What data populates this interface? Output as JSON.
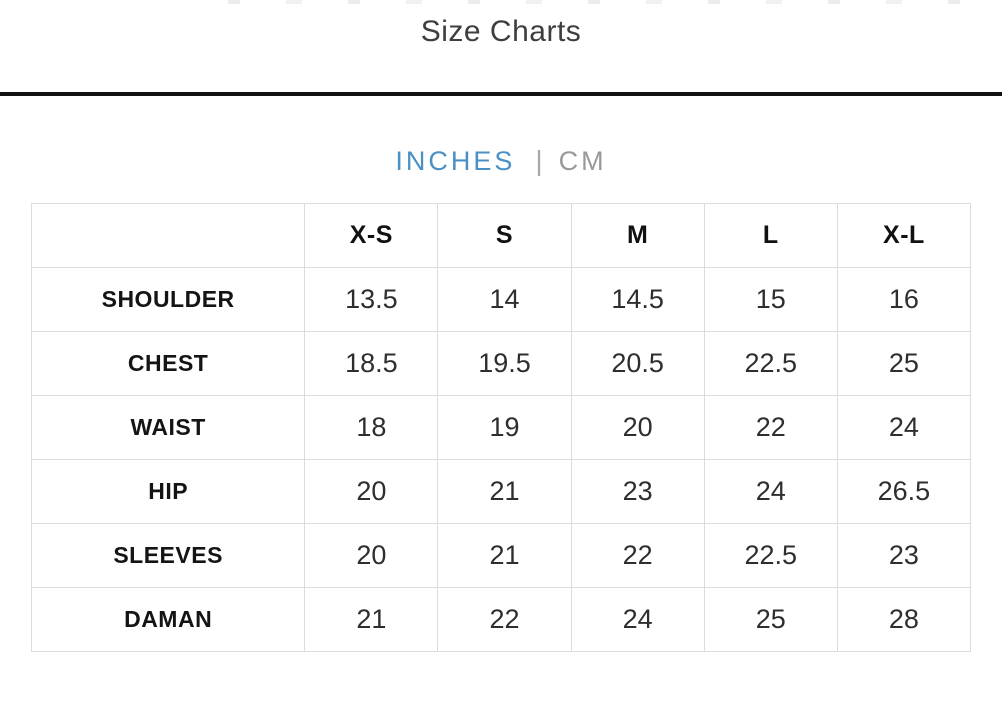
{
  "page": {
    "title": "Size Charts"
  },
  "unit_toggle": {
    "inches_label": "INCHES",
    "cm_label": "CM",
    "separator": "|",
    "active": "INCHES",
    "active_color": "#4a90c4",
    "inactive_color": "#97999b"
  },
  "table": {
    "columns": [
      "",
      "X-S",
      "S",
      "M",
      "L",
      "X-L"
    ],
    "rows": [
      {
        "label": "SHOULDER",
        "values": [
          "13.5",
          "14",
          "14.5",
          "15",
          "16"
        ]
      },
      {
        "label": "CHEST",
        "values": [
          "18.5",
          "19.5",
          "20.5",
          "22.5",
          "25"
        ]
      },
      {
        "label": "WAIST",
        "values": [
          "18",
          "19",
          "20",
          "22",
          "24"
        ]
      },
      {
        "label": "HIP",
        "values": [
          "20",
          "21",
          "23",
          "24",
          "26.5"
        ]
      },
      {
        "label": "SLEEVES",
        "values": [
          "20",
          "21",
          "22",
          "22.5",
          "23"
        ]
      },
      {
        "label": "DAMAN",
        "values": [
          "21",
          "22",
          "24",
          "25",
          "28"
        ]
      }
    ]
  }
}
